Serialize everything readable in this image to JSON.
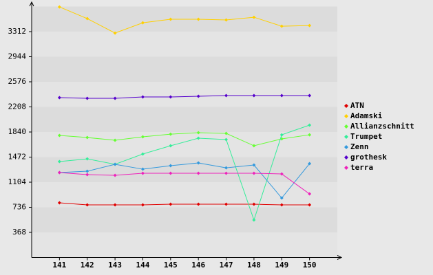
{
  "chart_data": {
    "type": "line",
    "x": [
      141,
      142,
      143,
      144,
      145,
      146,
      147,
      148,
      149,
      150
    ],
    "xlim": [
      140,
      151
    ],
    "xticks": [
      141,
      142,
      143,
      144,
      145,
      146,
      147,
      148,
      149,
      150
    ],
    "ylim": [
      0,
      3680
    ],
    "yticks": [
      368,
      736,
      1104,
      1472,
      1840,
      2208,
      2576,
      2944,
      3312
    ],
    "grid": true,
    "legend": "right",
    "series": [
      {
        "name": "ATN",
        "color": "#e00000",
        "values": [
          801,
          771,
          771,
          771,
          781,
          781,
          781,
          781,
          771,
          771
        ]
      },
      {
        "name": "Adamski",
        "color": "#ffd000",
        "values": [
          3674,
          3503,
          3291,
          3442,
          3493,
          3493,
          3483,
          3523,
          3392,
          3402
        ]
      },
      {
        "name": "Allianzschnitt",
        "color": "#66ff33",
        "values": [
          1789,
          1759,
          1719,
          1769,
          1809,
          1830,
          1820,
          1638,
          1739,
          1799
        ]
      },
      {
        "name": "Trumpet",
        "color": "#33ee99",
        "values": [
          1406,
          1446,
          1366,
          1517,
          1638,
          1749,
          1729,
          549,
          1799,
          1941
        ]
      },
      {
        "name": "Zenn",
        "color": "#3399dd",
        "values": [
          1245,
          1265,
          1366,
          1295,
          1346,
          1386,
          1315,
          1356,
          872,
          1376
        ]
      },
      {
        "name": "grothesk",
        "color": "#5500cc",
        "values": [
          2344,
          2334,
          2334,
          2354,
          2354,
          2364,
          2374,
          2374,
          2374,
          2374
        ]
      },
      {
        "name": "terra",
        "color": "#ee22bb",
        "values": [
          1245,
          1215,
          1205,
          1235,
          1235,
          1235,
          1235,
          1235,
          1225,
          932
        ]
      }
    ]
  }
}
